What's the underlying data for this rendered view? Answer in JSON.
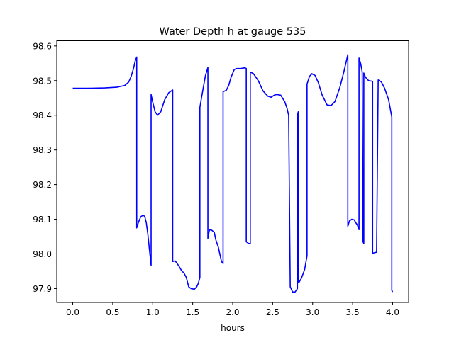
{
  "chart_data": {
    "type": "line",
    "title": "Water Depth h at gauge 535",
    "xlabel": "hours",
    "ylabel": "",
    "xlim": [
      -0.2,
      4.2
    ],
    "ylim": [
      97.86,
      98.615
    ],
    "xticks": [
      0.0,
      0.5,
      1.0,
      1.5,
      2.0,
      2.5,
      3.0,
      3.5,
      4.0
    ],
    "xtick_labels": [
      "0.0",
      "0.5",
      "1.0",
      "1.5",
      "2.0",
      "2.5",
      "3.0",
      "3.5",
      "4.0"
    ],
    "yticks": [
      97.9,
      98.0,
      98.1,
      98.2,
      98.3,
      98.4,
      98.5,
      98.6
    ],
    "ytick_labels": [
      "97.9",
      "98.0",
      "98.1",
      "98.2",
      "98.3",
      "98.4",
      "98.5",
      "98.6"
    ],
    "grid": false,
    "series": [
      {
        "color": "#0000ff",
        "x": [
          0.0,
          0.2,
          0.4,
          0.55,
          0.65,
          0.7,
          0.73,
          0.76,
          0.78,
          0.8,
          0.8,
          0.82,
          0.85,
          0.88,
          0.9,
          0.92,
          0.94,
          0.96,
          0.98,
          0.98,
          1.0,
          1.03,
          1.06,
          1.1,
          1.15,
          1.2,
          1.25,
          1.25,
          1.28,
          1.3,
          1.33,
          1.36,
          1.39,
          1.42,
          1.45,
          1.48,
          1.52,
          1.55,
          1.57,
          1.59,
          1.59,
          1.61,
          1.64,
          1.66,
          1.69,
          1.69,
          1.71,
          1.74,
          1.77,
          1.79,
          1.82,
          1.86,
          1.88,
          1.88,
          1.92,
          1.95,
          1.98,
          2.02,
          2.05,
          2.1,
          2.15,
          2.17,
          2.17,
          2.2,
          2.2,
          2.22,
          2.22,
          2.26,
          2.32,
          2.38,
          2.44,
          2.48,
          2.52,
          2.55,
          2.6,
          2.65,
          2.68,
          2.7,
          2.72,
          2.72,
          2.75,
          2.78,
          2.81,
          2.81,
          2.82,
          2.82,
          2.83,
          2.83,
          2.86,
          2.9,
          2.93,
          2.93,
          2.96,
          2.99,
          3.03,
          3.07,
          3.12,
          3.18,
          3.23,
          3.28,
          3.34,
          3.39,
          3.44,
          3.44,
          3.46,
          3.49,
          3.52,
          3.54,
          3.56,
          3.58,
          3.58,
          3.6,
          3.62,
          3.63,
          3.63,
          3.64,
          3.64,
          3.66,
          3.7,
          3.75,
          3.75,
          3.8,
          3.8,
          3.82,
          3.86,
          3.9,
          3.95,
          3.99,
          3.99,
          4.0
        ],
        "y": [
          98.478,
          98.478,
          98.479,
          98.481,
          98.486,
          98.496,
          98.512,
          98.535,
          98.556,
          98.568,
          98.075,
          98.09,
          98.107,
          98.112,
          98.108,
          98.09,
          98.055,
          98.01,
          97.967,
          98.46,
          98.438,
          98.41,
          98.4,
          98.41,
          98.445,
          98.465,
          98.473,
          97.978,
          97.98,
          97.974,
          97.964,
          97.952,
          97.945,
          97.932,
          97.905,
          97.9,
          97.898,
          97.905,
          97.915,
          97.932,
          98.423,
          98.45,
          98.49,
          98.515,
          98.538,
          98.045,
          98.07,
          98.068,
          98.062,
          98.04,
          98.02,
          97.978,
          97.972,
          98.468,
          98.472,
          98.486,
          98.51,
          98.532,
          98.535,
          98.535,
          98.537,
          98.535,
          98.035,
          98.03,
          98.03,
          98.03,
          98.525,
          98.52,
          98.5,
          98.47,
          98.455,
          98.452,
          98.458,
          98.46,
          98.458,
          98.44,
          98.42,
          98.4,
          97.905,
          97.905,
          97.89,
          97.89,
          97.9,
          98.4,
          98.41,
          97.918,
          97.918,
          97.918,
          97.93,
          97.955,
          97.995,
          98.49,
          98.512,
          98.52,
          98.515,
          98.495,
          98.458,
          98.43,
          98.428,
          98.44,
          98.48,
          98.525,
          98.575,
          98.08,
          98.095,
          98.1,
          98.098,
          98.09,
          98.083,
          98.07,
          98.565,
          98.55,
          98.525,
          98.035,
          98.035,
          98.03,
          98.522,
          98.51,
          98.5,
          98.498,
          98.002,
          98.005,
          98.01,
          98.502,
          98.496,
          98.478,
          98.445,
          98.395,
          97.895,
          97.89
        ]
      }
    ]
  }
}
